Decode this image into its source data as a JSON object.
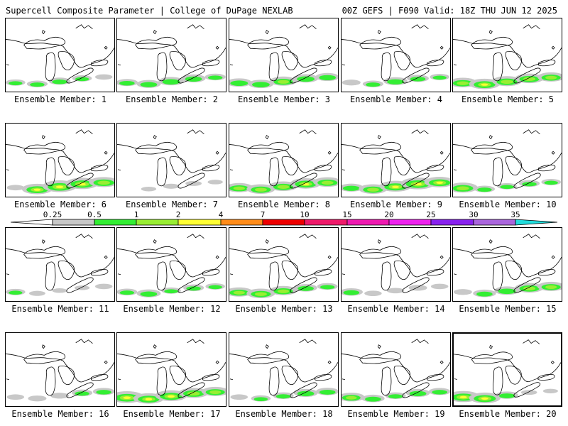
{
  "header": {
    "title_left": "Supercell Composite Parameter | College of DuPage NEXLAB",
    "title_right": "00Z GEFS | F090 Valid: 18Z THU JUN 12 2025"
  },
  "member_label_prefix": "Ensemble Member: ",
  "members": [
    {
      "id": "1",
      "intensity": [
        0.5,
        0.6,
        0.7,
        0.5,
        0.3
      ]
    },
    {
      "id": "2",
      "intensity": [
        0.7,
        0.9,
        1.0,
        0.9,
        0.6
      ]
    },
    {
      "id": "3",
      "intensity": [
        1.0,
        1.0,
        1.2,
        1.0,
        0.9
      ]
    },
    {
      "id": "4",
      "intensity": [
        0.4,
        0.6,
        0.9,
        0.7,
        0.5
      ]
    },
    {
      "id": "5",
      "intensity": [
        1.3,
        1.5,
        1.4,
        1.3,
        1.2
      ]
    },
    {
      "id": "6",
      "intensity": [
        0.3,
        1.5,
        1.8,
        1.7,
        1.4
      ]
    },
    {
      "id": "7",
      "intensity": [
        0.0,
        0.1,
        0.2,
        0.2,
        0.1
      ]
    },
    {
      "id": "8",
      "intensity": [
        1.2,
        1.3,
        1.3,
        1.5,
        1.3
      ]
    },
    {
      "id": "9",
      "intensity": [
        0.9,
        1.3,
        1.6,
        1.8,
        1.5
      ]
    },
    {
      "id": "10",
      "intensity": [
        1.4,
        0.6,
        0.5,
        0.6,
        0.5
      ]
    },
    {
      "id": "11",
      "intensity": [
        0.5,
        0.2,
        0.1,
        0.1,
        0.3
      ]
    },
    {
      "id": "12",
      "intensity": [
        0.6,
        0.9,
        0.5,
        0.6,
        0.5
      ]
    },
    {
      "id": "13",
      "intensity": [
        1.2,
        1.3,
        1.2,
        0.8,
        0.6
      ]
    },
    {
      "id": "14",
      "intensity": [
        0.8,
        0.3,
        0.3,
        0.4,
        0.3
      ]
    },
    {
      "id": "15",
      "intensity": [
        0.4,
        0.8,
        1.0,
        1.3,
        1.2
      ]
    },
    {
      "id": "16",
      "intensity": [
        0.3,
        0.4,
        0.4,
        0.6,
        0.7
      ]
    },
    {
      "id": "17",
      "intensity": [
        1.8,
        1.5,
        1.6,
        1.4,
        1.2
      ]
    },
    {
      "id": "18",
      "intensity": [
        0.3,
        0.5,
        0.6,
        0.9,
        0.8
      ]
    },
    {
      "id": "19",
      "intensity": [
        1.1,
        0.8,
        0.6,
        0.9,
        0.7
      ]
    },
    {
      "id": "20",
      "intensity": [
        1.7,
        1.6,
        0.8,
        0.2,
        0.1
      ]
    }
  ],
  "selected_member": "20",
  "colorbar": {
    "ticks": [
      "0.25",
      "0.5",
      "1",
      "2",
      "4",
      "7",
      "10",
      "15",
      "20",
      "25",
      "30",
      "35"
    ],
    "colors": [
      "#c8c8c8",
      "#33ee33",
      "#99ee33",
      "#ffff33",
      "#ff8c1a",
      "#ee0000",
      "#ee1a6a",
      "#ee1ab0",
      "#ee22ee",
      "#8822ee",
      "#aa66dd",
      "#22dddd"
    ]
  },
  "colors": {
    "lake_outline": "#000000",
    "shade_gray": "#c8c8c8",
    "shade_green": "#33ee33",
    "shade_lightgreen": "#99ee33",
    "shade_yellow": "#ffff33"
  }
}
